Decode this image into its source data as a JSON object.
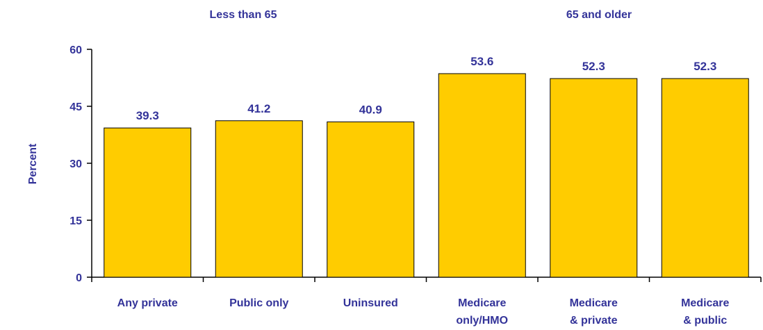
{
  "chart_data": {
    "type": "bar",
    "group_labels": [
      "Less than 65",
      "65 and older"
    ],
    "categories": [
      [
        "Any private"
      ],
      [
        "Public only"
      ],
      [
        "Uninsured"
      ],
      [
        "Medicare",
        "only/HMO"
      ],
      [
        "Medicare",
        "& private"
      ],
      [
        "Medicare",
        "& public"
      ]
    ],
    "values": [
      39.3,
      41.2,
      40.9,
      53.6,
      52.3,
      52.3
    ],
    "value_labels": [
      "39.3",
      "41.2",
      "40.9",
      "53.6",
      "52.3",
      "52.3"
    ],
    "ylabel": "Percent",
    "ylim": [
      0,
      60
    ],
    "yticks": [
      0,
      15,
      30,
      45,
      60
    ],
    "grid": false,
    "legend": "none",
    "colors": {
      "bar_fill": "#FFCC00",
      "bar_stroke": "#000000",
      "text": "#333399",
      "axis": "#000000"
    }
  }
}
